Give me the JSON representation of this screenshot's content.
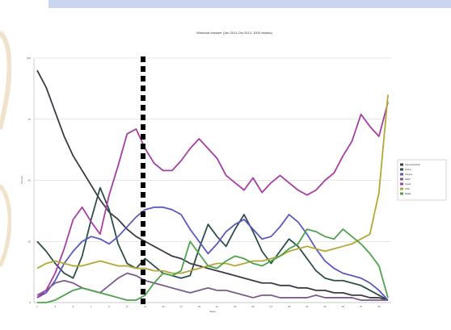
{
  "slide": {
    "bg_color": "#ffffff",
    "band_color": "#c9d6ee",
    "swirl_color": "#f0e3cc"
  },
  "chart_data": {
    "type": "line",
    "title": "Windows browser (Jan 2011-Oct 2013, 1000 visitors)",
    "xlabel": "Week",
    "ylabel": "Percent",
    "ylim": [
      0,
      100
    ],
    "grid": true,
    "legend_position": "right",
    "x": [
      1,
      2,
      3,
      4,
      5,
      6,
      7,
      8,
      9,
      10,
      11,
      12,
      13,
      14,
      15,
      16,
      17,
      18,
      19,
      20,
      21,
      22,
      23,
      24,
      25,
      26,
      27,
      28,
      29,
      30,
      31,
      32,
      33,
      34,
      35,
      36,
      37,
      38,
      39,
      40
    ],
    "x_tick_labels": [
      "1",
      "",
      "3",
      "",
      "5",
      "",
      "7",
      "",
      "9",
      "",
      "11",
      "",
      "13",
      "",
      "15",
      "",
      "17",
      "",
      "19",
      "",
      "21",
      "",
      "23",
      "",
      "25",
      "",
      "27",
      "",
      "29",
      "",
      "31",
      "",
      "33",
      "",
      "35",
      "",
      "37",
      "",
      "39",
      ""
    ],
    "y_ticks": [
      0,
      25,
      50,
      75,
      100
    ],
    "y_tick_labels": [
      "0",
      "25",
      "50",
      "75",
      "100"
    ],
    "series": [
      {
        "name": "Internet Explorer",
        "color": "#3b3b46",
        "values": [
          95,
          88,
          78,
          68,
          60,
          54,
          48,
          42,
          37,
          34,
          30,
          27,
          25,
          23,
          21,
          19,
          18,
          16,
          15,
          14,
          13,
          12,
          11,
          10,
          9,
          8,
          8,
          7,
          7,
          6,
          6,
          5,
          5,
          4,
          4,
          3,
          3,
          2,
          2,
          1
        ]
      },
      {
        "name": "Firefox",
        "color": "#2d4f4a",
        "values": [
          25,
          21,
          16,
          12,
          10,
          19,
          34,
          47,
          38,
          24,
          16,
          14,
          18,
          15,
          12,
          11,
          10,
          11,
          22,
          32,
          27,
          23,
          30,
          36,
          29,
          21,
          16,
          21,
          26,
          23,
          18,
          13,
          10,
          9,
          9,
          8,
          7,
          5,
          3,
          1
        ]
      },
      {
        "name": "Chrome",
        "color": "#5a58c0",
        "values": [
          2,
          4,
          9,
          16,
          21,
          25,
          27,
          26,
          24,
          27,
          31,
          35,
          38,
          39,
          39,
          38,
          36,
          30,
          25,
          20,
          24,
          29,
          32,
          34,
          30,
          26,
          27,
          31,
          36,
          33,
          28,
          22,
          17,
          14,
          12,
          11,
          10,
          8,
          5,
          1
        ]
      },
      {
        "name": "Safari",
        "color": "#7c5c8a",
        "values": [
          3,
          5,
          8,
          9,
          8,
          6,
          5,
          4,
          7,
          10,
          12,
          11,
          9,
          8,
          7,
          6,
          5,
          4,
          5,
          6,
          5,
          5,
          4,
          3,
          2,
          3,
          3,
          2,
          2,
          2,
          2,
          3,
          2,
          2,
          2,
          2,
          1,
          1,
          1,
          1
        ]
      },
      {
        "name": "Opera",
        "color": "#a63ea3",
        "values": [
          2,
          5,
          12,
          22,
          34,
          39,
          33,
          28,
          44,
          56,
          69,
          71,
          63,
          57,
          54,
          54,
          58,
          63,
          67,
          63,
          59,
          52,
          49,
          46,
          51,
          45,
          49,
          52,
          49,
          46,
          44,
          46,
          50,
          53,
          60,
          66,
          77,
          72,
          68,
          82
        ]
      },
      {
        "name": "Other",
        "color": "#b3a736",
        "values": [
          14,
          16,
          17,
          16,
          15,
          15,
          16,
          17,
          16,
          15,
          15,
          14,
          14,
          13,
          13,
          12,
          12,
          13,
          14,
          15,
          16,
          16,
          15,
          16,
          17,
          17,
          18,
          19,
          21,
          22,
          23,
          22,
          21,
          22,
          23,
          24,
          26,
          28,
          45,
          85
        ]
      },
      {
        "name": "Mobile",
        "color": "#4ea24c",
        "values": [
          0,
          0,
          1,
          3,
          5,
          6,
          5,
          4,
          3,
          2,
          1,
          1,
          3,
          8,
          12,
          11,
          13,
          25,
          20,
          15,
          14,
          17,
          19,
          18,
          16,
          15,
          17,
          19,
          22,
          24,
          30,
          29,
          27,
          26,
          30,
          27,
          24,
          20,
          15,
          2
        ]
      }
    ]
  }
}
